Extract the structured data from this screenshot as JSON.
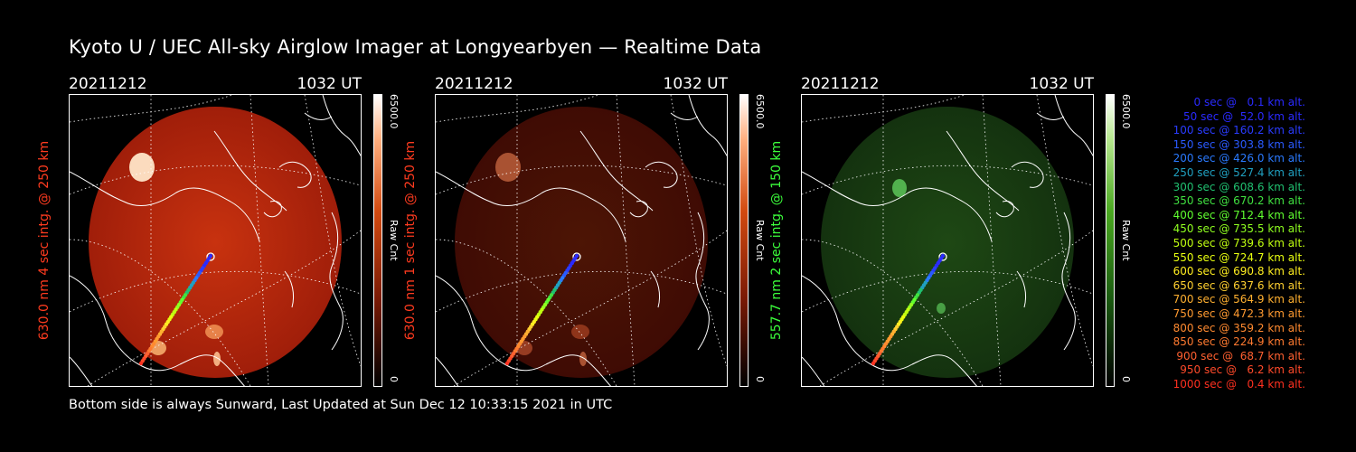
{
  "title": "Kyoto U / UEC All-sky Airglow Imager at Longyearbyen — Realtime Data",
  "footer": "Bottom side is always Sunward, Last Updated at Sun Dec 12 10:33:15 2021 in UTC",
  "panels": [
    {
      "date": "20211212",
      "time": "1032 UT",
      "ylabel": "630.0 nm 4 sec intg. @ 250 km",
      "label_color": "#ff3b1f",
      "cbar_max": "6500.0",
      "cbar_unit": "Raw Cnt",
      "cbar_min": "0",
      "colormap": "red",
      "brightness": 1.0
    },
    {
      "date": "20211212",
      "time": "1032 UT",
      "ylabel": "630.0 nm 1 sec intg. @ 250 km",
      "label_color": "#ff3b1f",
      "cbar_max": "6500.0",
      "cbar_unit": "Raw Cnt",
      "cbar_min": "0",
      "colormap": "red",
      "brightness": 0.35
    },
    {
      "date": "20211212",
      "time": "1032 UT",
      "ylabel": "557.7 nm 2 sec intg. @ 150 km",
      "label_color": "#3cff3c",
      "cbar_max": "6500.0",
      "cbar_unit": "Raw Cnt",
      "cbar_min": "0",
      "colormap": "green",
      "brightness": 0.45
    }
  ],
  "legend": [
    {
      "text": "0 sec @   0.1 km alt.",
      "color": "#2a2aff"
    },
    {
      "text": "50 sec @  52.0 km alt.",
      "color": "#2a2aff"
    },
    {
      "text": "100 sec @ 160.2 km alt.",
      "color": "#2a3cff"
    },
    {
      "text": "150 sec @ 303.8 km alt.",
      "color": "#2a5aff"
    },
    {
      "text": "200 sec @ 426.0 km alt.",
      "color": "#2a7aff"
    },
    {
      "text": "250 sec @ 527.4 km alt.",
      "color": "#20a0c0"
    },
    {
      "text": "300 sec @ 608.6 km alt.",
      "color": "#20c070"
    },
    {
      "text": "350 sec @ 670.2 km alt.",
      "color": "#40e040"
    },
    {
      "text": "400 sec @ 712.4 km alt.",
      "color": "#60ff30"
    },
    {
      "text": "450 sec @ 735.5 km alt.",
      "color": "#90ff20"
    },
    {
      "text": "500 sec @ 739.6 km alt.",
      "color": "#c0ff10"
    },
    {
      "text": "550 sec @ 724.7 km alt.",
      "color": "#e8ff10"
    },
    {
      "text": "600 sec @ 690.8 km alt.",
      "color": "#ffee20"
    },
    {
      "text": "650 sec @ 637.6 km alt.",
      "color": "#ffd030"
    },
    {
      "text": "700 sec @ 564.9 km alt.",
      "color": "#ffb030"
    },
    {
      "text": "750 sec @ 472.3 km alt.",
      "color": "#ff9a30"
    },
    {
      "text": "800 sec @ 359.2 km alt.",
      "color": "#ff8a30"
    },
    {
      "text": "850 sec @ 224.9 km alt.",
      "color": "#ff7a30"
    },
    {
      "text": "900 sec @  68.7 km alt.",
      "color": "#ff6030"
    },
    {
      "text": "950 sec @   6.2 km alt.",
      "color": "#ff4a2a"
    },
    {
      "text": "1000 sec @   0.4 km alt.",
      "color": "#ff3020"
    }
  ]
}
